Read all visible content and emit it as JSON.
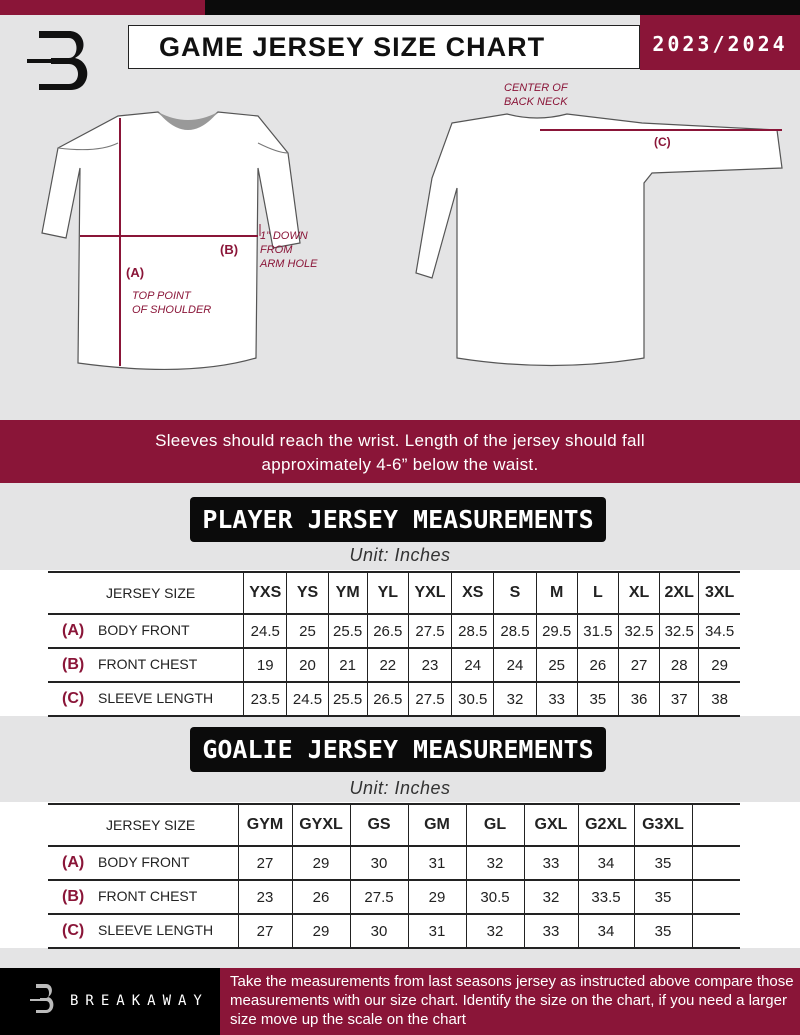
{
  "header": {
    "title": "GAME JERSEY SIZE CHART",
    "season": "2023/2024",
    "logo_letter": "B"
  },
  "diagram": {
    "label_a": "(A)",
    "label_b": "(B)",
    "label_c": "(C)",
    "top_point_1": "TOP POINT",
    "top_point_2": "OF SHOULDER",
    "down_1": "1” DOWN",
    "down_2": "FROM",
    "down_3": "ARM HOLE",
    "center_1": "CENTER OF",
    "center_2": "BACK NECK"
  },
  "band": {
    "line1": "Sleeves should reach the wrist. Length of the jersey should fall",
    "line2": "approximately 4-6” below the waist."
  },
  "player": {
    "heading": "PLAYER JERSEY MEASUREMENTS",
    "unit": "Unit: Inches",
    "size_label": "JERSEY SIZE",
    "sizes": [
      "YXS",
      "YS",
      "YM",
      "YL",
      "YXL",
      "XS",
      "S",
      "M",
      "L",
      "XL",
      "2XL",
      "3XL"
    ],
    "rows": [
      {
        "letter": "(A)",
        "label": "BODY FRONT",
        "values": [
          "24.5",
          "25",
          "25.5",
          "26.5",
          "27.5",
          "28.5",
          "28.5",
          "29.5",
          "31.5",
          "32.5",
          "32.5",
          "34.5"
        ]
      },
      {
        "letter": "(B)",
        "label": "FRONT CHEST",
        "values": [
          "19",
          "20",
          "21",
          "22",
          "23",
          "24",
          "24",
          "25",
          "26",
          "27",
          "28",
          "29"
        ]
      },
      {
        "letter": "(C)",
        "label": "SLEEVE LENGTH",
        "values": [
          "23.5",
          "24.5",
          "25.5",
          "26.5",
          "27.5",
          "30.5",
          "32",
          "33",
          "35",
          "36",
          "37",
          "38"
        ]
      }
    ]
  },
  "goalie": {
    "heading": "GOALIE JERSEY MEASUREMENTS",
    "unit": "Unit: Inches",
    "size_label": "JERSEY SIZE",
    "sizes": [
      "GYM",
      "GYXL",
      "GS",
      "GM",
      "GL",
      "GXL",
      "G2XL",
      "G3XL",
      ""
    ],
    "rows": [
      {
        "letter": "(A)",
        "label": "BODY FRONT",
        "values": [
          "27",
          "29",
          "30",
          "31",
          "32",
          "33",
          "34",
          "35",
          ""
        ]
      },
      {
        "letter": "(B)",
        "label": "FRONT CHEST",
        "values": [
          "23",
          "26",
          "27.5",
          "29",
          "30.5",
          "32",
          "33.5",
          "35",
          ""
        ]
      },
      {
        "letter": "(C)",
        "label": "SLEEVE LENGTH",
        "values": [
          "27",
          "29",
          "30",
          "31",
          "32",
          "33",
          "34",
          "35",
          ""
        ]
      }
    ]
  },
  "footer": {
    "brand": "BREAKAWAY",
    "text": "Take the measurements from last seasons jersey as instructed above compare those measurements  with our size chart. Identify the size on the chart, if you need a larger size move up the scale on the chart"
  },
  "colors": {
    "accent": "#8a1538",
    "dark": "#0b0b0b",
    "background": "#e4e4e5"
  }
}
